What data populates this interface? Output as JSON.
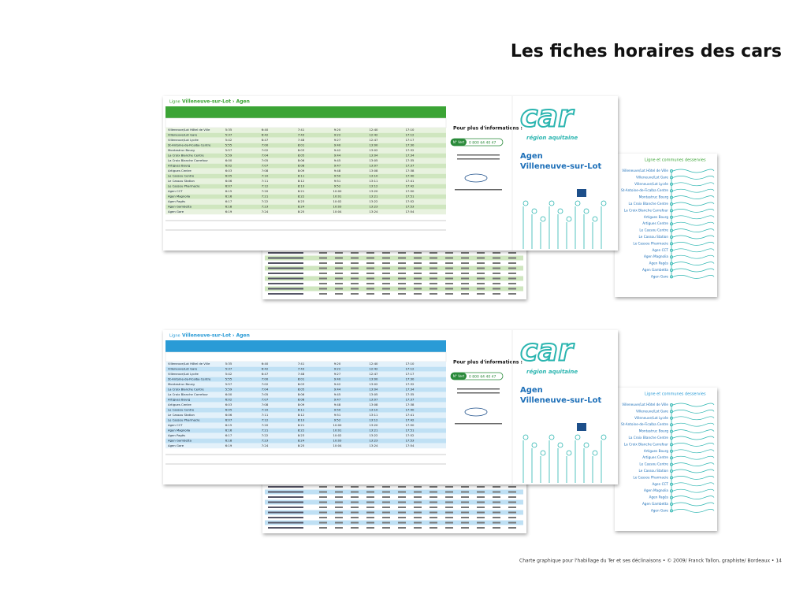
{
  "header": {
    "title": "Les fiches horaires des cars"
  },
  "sheet": {
    "line_label": "Ligne",
    "line_name": "Villeneuve-sur-Lot › Agen",
    "info_title": "Pour plus d'informations :",
    "phone_label": "N° Vert",
    "phone": "0 800 64 40 47",
    "logo": "car",
    "brand": "région aquitaine",
    "dest_from": "Agen",
    "dest_to": "Villeneuve-sur-Lot",
    "stops_title": "Ligne et communes desservies",
    "timetable": {
      "rows": [
        {
          "stop": "Villeneuve/Lot Hôtel de Ville",
          "times": [
            "5:35",
            "6:40",
            "7:41",
            "9:20",
            "12:40",
            "17:10"
          ]
        },
        {
          "stop": "Villeneuve/Lot Gare",
          "times": [
            "5:37",
            "6:42",
            "7:43",
            "9:22",
            "12:42",
            "17:12"
          ]
        },
        {
          "stop": "Villeneuve/Lot Lycée",
          "times": [
            "5:42",
            "6:47",
            "7:48",
            "9:27",
            "12:47",
            "17:17"
          ]
        },
        {
          "stop": "St-Antoine-de-Ficalba Centre",
          "times": [
            "5:55",
            "7:00",
            "8:01",
            "9:40",
            "13:00",
            "17:30"
          ]
        },
        {
          "stop": "Montastruc Bourg",
          "times": [
            "5:57",
            "7:02",
            "8:03",
            "9:42",
            "13:02",
            "17:32"
          ]
        },
        {
          "stop": "La Croix Blanche Centre",
          "times": [
            "5:59",
            "7:04",
            "8:05",
            "9:44",
            "13:04",
            "17:34"
          ]
        },
        {
          "stop": "La Croix Blanche Carrefour",
          "times": [
            "6:00",
            "7:05",
            "8:06",
            "9:45",
            "13:05",
            "17:35"
          ]
        },
        {
          "stop": "Artigues Bourg",
          "times": [
            "6:02",
            "7:07",
            "8:08",
            "9:47",
            "13:07",
            "17:37"
          ]
        },
        {
          "stop": "Artigues Centre",
          "times": [
            "6:03",
            "7:08",
            "8:09",
            "9:48",
            "13:08",
            "17:38"
          ]
        },
        {
          "stop": "Le Cassou Centre",
          "times": [
            "6:05",
            "7:10",
            "8:11",
            "9:50",
            "13:10",
            "17:40"
          ]
        },
        {
          "stop": "Le Cassou Station",
          "times": [
            "6:06",
            "7:11",
            "8:12",
            "9:51",
            "13:11",
            "17:41"
          ]
        },
        {
          "stop": "Le Cassou Pharmacie",
          "times": [
            "6:07",
            "7:12",
            "8:13",
            "9:52",
            "13:12",
            "17:42"
          ]
        },
        {
          "stop": "Agen CCT",
          "times": [
            "6:15",
            "7:20",
            "8:21",
            "10:00",
            "13:20",
            "17:50"
          ]
        },
        {
          "stop": "Agen Magnolia",
          "times": [
            "6:16",
            "7:21",
            "8:22",
            "10:01",
            "13:21",
            "17:51"
          ]
        },
        {
          "stop": "Agen Pagès",
          "times": [
            "6:17",
            "7:22",
            "8:23",
            "10:02",
            "13:22",
            "17:52"
          ]
        },
        {
          "stop": "Agen Gambetta",
          "times": [
            "6:18",
            "7:23",
            "8:24",
            "10:03",
            "13:23",
            "17:53"
          ]
        },
        {
          "stop": "Agen Gare",
          "times": [
            "6:19",
            "7:24",
            "8:25",
            "10:04",
            "13:24",
            "17:54"
          ]
        }
      ]
    }
  },
  "footer": {
    "text": "Charte graphique pour l'habillage du Ter et ses déclinaisons • © 2009/ Franck Tallon, graphiste/ Bordeaux • 14"
  }
}
